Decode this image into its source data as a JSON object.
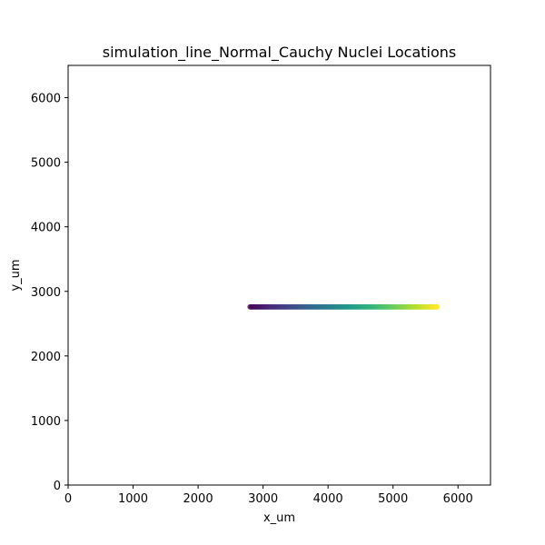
{
  "chart_data": {
    "type": "scatter",
    "title": "simulation_line_Normal_Cauchy Nuclei Locations",
    "xlabel": "x_um",
    "ylabel": "y_um",
    "xlim": [
      0,
      6500
    ],
    "ylim": [
      0,
      6500
    ],
    "xticks": [
      0,
      1000,
      2000,
      3000,
      4000,
      5000,
      6000
    ],
    "yticks": [
      0,
      1000,
      2000,
      3000,
      4000,
      5000,
      6000
    ],
    "grid": false,
    "colormap": "viridis",
    "series": [
      {
        "points": {
          "x_start": 2800,
          "x_end": 5680,
          "y": 2760
        }
      }
    ]
  }
}
